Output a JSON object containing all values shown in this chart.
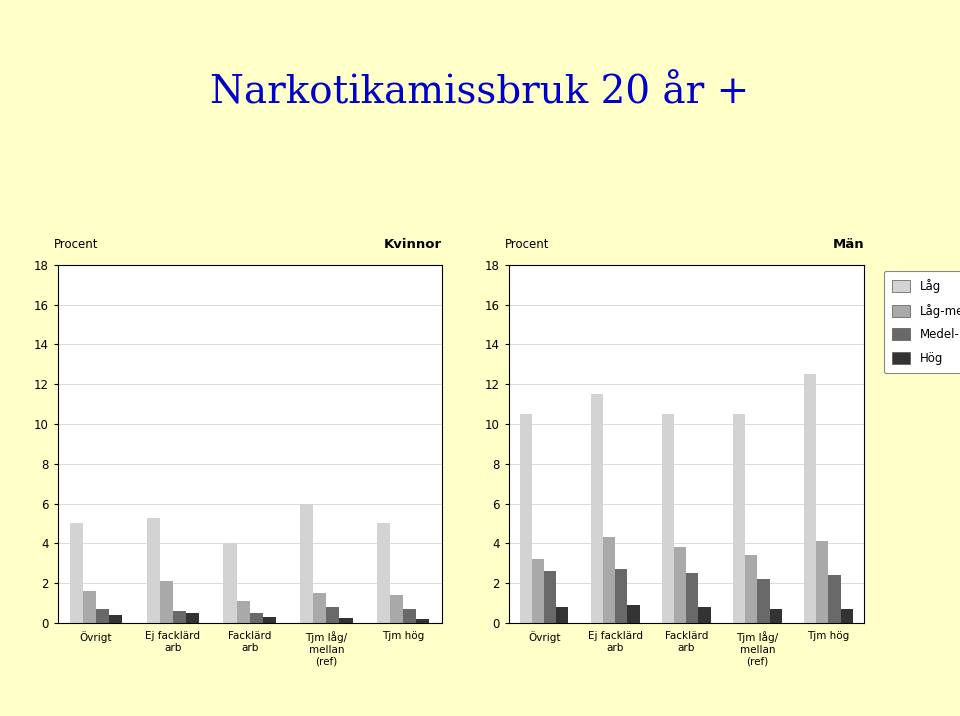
{
  "title": "Narkotikamissbruk 20 år +",
  "title_color": "#0000cc",
  "background_color": "#ffffc8",
  "chart_background": "#ffffff",
  "outer_background": "#ffffc8",
  "categories": [
    "Övrigt",
    "Ej facklärd\narb",
    "Facklärd\narb",
    "Tjm låg/\nmellan\n(ref)",
    "Tjm hög"
  ],
  "legend_labels": [
    "Låg",
    "Låg-medel",
    "Medel-hög",
    "Hög"
  ],
  "colors": [
    "#d3d3d3",
    "#a9a9a9",
    "#696969",
    "#333333"
  ],
  "kvinnor_data": {
    "label": "Kvinnor",
    "Låg": [
      5.0,
      5.3,
      4.0,
      6.0,
      5.0
    ],
    "Låg-medel": [
      1.6,
      2.1,
      1.1,
      1.5,
      1.4
    ],
    "Medel-hög": [
      0.7,
      0.6,
      0.5,
      0.8,
      0.7
    ],
    "Hög": [
      0.4,
      0.5,
      0.3,
      0.25,
      0.2
    ]
  },
  "man_data": {
    "label": "Män",
    "Låg": [
      10.5,
      11.5,
      10.5,
      10.5,
      12.5
    ],
    "Låg-medel": [
      3.2,
      4.3,
      3.8,
      3.4,
      4.1
    ],
    "Medel-hög": [
      2.6,
      2.7,
      2.5,
      2.2,
      2.4
    ],
    "Hög": [
      0.8,
      0.9,
      0.8,
      0.7,
      0.7
    ]
  },
  "ylim": [
    0,
    18
  ],
  "yticks": [
    0,
    2,
    4,
    6,
    8,
    10,
    12,
    14,
    16,
    18
  ],
  "ylabel": "Procent"
}
